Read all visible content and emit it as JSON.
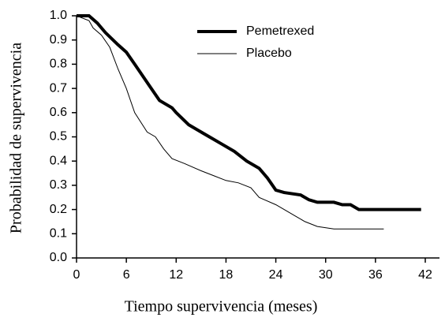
{
  "chart_data": {
    "type": "line",
    "x_label": "Tiempo supervivencia (meses)",
    "y_label": "Probabilidad de supervivencia",
    "xlim": [
      0,
      42
    ],
    "xticks": [
      0,
      6,
      12,
      18,
      24,
      30,
      36,
      42
    ],
    "ylim": [
      0,
      1
    ],
    "yticks": [
      {
        "value": 0,
        "label": "0.0"
      },
      0.1,
      0.2,
      0.3,
      0.4,
      0.5,
      0.6,
      0.7,
      0.8,
      0.9,
      {
        "value": 1,
        "label": "1.0"
      }
    ],
    "grid": false,
    "legend": "upper right",
    "series": [
      {
        "name": "Pemetrexed",
        "color": "#000000",
        "line_width": 4,
        "x": [
          0,
          1.5,
          2.5,
          3.5,
          5,
          6,
          7,
          8,
          9,
          10,
          11.5,
          12,
          13.5,
          15,
          16,
          17.5,
          19,
          20.5,
          22,
          23,
          24,
          25,
          27,
          28,
          29,
          31,
          32,
          33,
          34,
          41.5
        ],
        "values": [
          1.0,
          1.0,
          0.97,
          0.93,
          0.88,
          0.85,
          0.8,
          0.75,
          0.7,
          0.65,
          0.62,
          0.6,
          0.55,
          0.52,
          0.5,
          0.47,
          0.44,
          0.4,
          0.37,
          0.33,
          0.28,
          0.27,
          0.26,
          0.24,
          0.23,
          0.23,
          0.22,
          0.22,
          0.2,
          0.2
        ]
      },
      {
        "name": "Placebo",
        "color": "#000000",
        "line_width": 1,
        "x": [
          0,
          1.5,
          2,
          3,
          4,
          5,
          6,
          7,
          8.5,
          9.5,
          10.5,
          11.5,
          13,
          15,
          16.5,
          18,
          19.5,
          21,
          22,
          24,
          25,
          26.5,
          27.5,
          29,
          31,
          37
        ],
        "values": [
          1.0,
          0.98,
          0.95,
          0.92,
          0.87,
          0.78,
          0.7,
          0.6,
          0.52,
          0.5,
          0.45,
          0.41,
          0.39,
          0.36,
          0.34,
          0.32,
          0.31,
          0.29,
          0.25,
          0.22,
          0.2,
          0.17,
          0.15,
          0.13,
          0.12,
          0.12
        ]
      }
    ]
  }
}
